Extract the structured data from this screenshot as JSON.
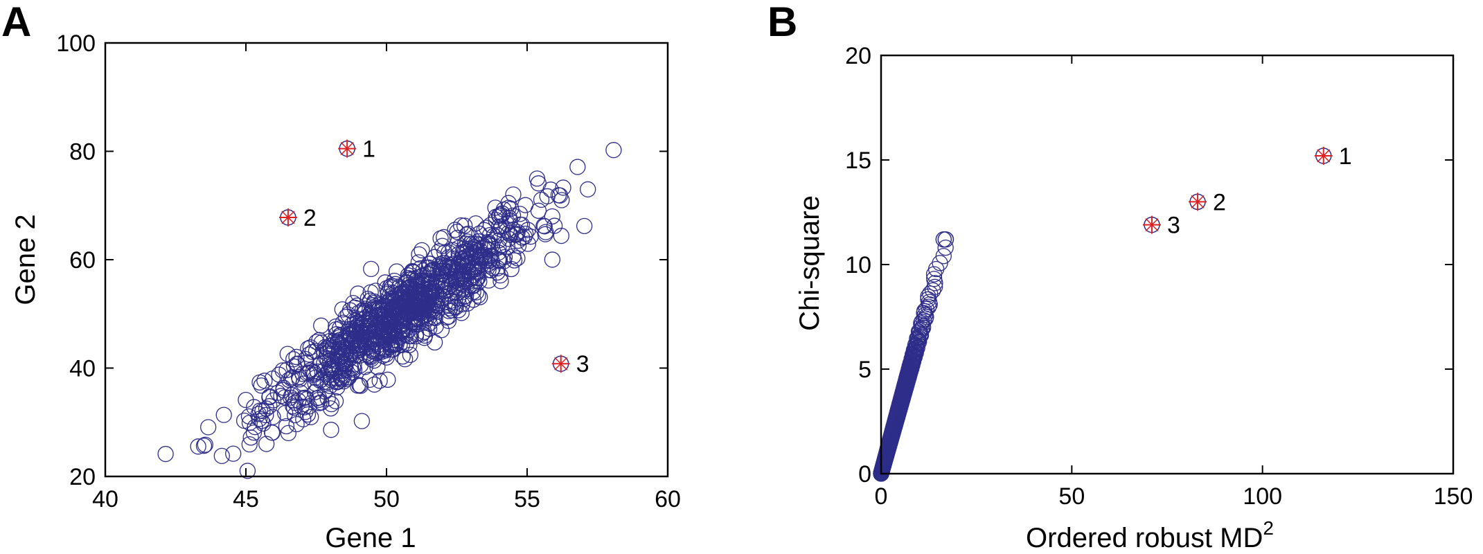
{
  "figure": {
    "panels": [
      {
        "letter": "A",
        "chart_data": {
          "type": "scatter",
          "title": "",
          "xlabel": "Gene 1",
          "ylabel": "Gene 2",
          "xlim": [
            40,
            60
          ],
          "ylim": [
            20,
            100
          ],
          "xticks": [
            40,
            45,
            50,
            55,
            60
          ],
          "yticks": [
            20,
            40,
            60,
            80,
            100
          ],
          "grid": false,
          "bulk": {
            "description_count": 1000,
            "marker": "open-circle",
            "color": "#2e2e8a",
            "mean": [
              50.5,
              50.0
            ],
            "sd": [
              2.4,
              9.4
            ],
            "correlation": 0.92
          },
          "outliers": {
            "marker": "circle-plus-star",
            "color": "#e02020",
            "points": [
              {
                "label": "1",
                "x": 48.6,
                "y": 80.5
              },
              {
                "label": "2",
                "x": 46.5,
                "y": 67.8
              },
              {
                "label": "3",
                "x": 56.2,
                "y": 40.8
              }
            ]
          }
        }
      },
      {
        "letter": "B",
        "chart_data": {
          "type": "scatter",
          "title": "",
          "xlabel": "Ordered robust MD",
          "xlabel_superscript": "2",
          "ylabel": "Chi-square",
          "xlim": [
            0,
            150
          ],
          "ylim": [
            0,
            20
          ],
          "xticks": [
            0,
            50,
            100,
            150
          ],
          "yticks": [
            0,
            5,
            10,
            15,
            20
          ],
          "grid": false,
          "bulk": {
            "description_count": 1000,
            "marker": "open-circle",
            "color": "#2e2e8a",
            "curve": "ordered-quantiles",
            "max_point": [
              17.0,
              11.2
            ]
          },
          "outliers": {
            "marker": "circle-plus-star",
            "color": "#e02020",
            "points": [
              {
                "label": "1",
                "x": 116,
                "y": 15.2
              },
              {
                "label": "2",
                "x": 83,
                "y": 13.0
              },
              {
                "label": "3",
                "x": 71,
                "y": 11.9
              }
            ]
          }
        }
      }
    ]
  }
}
